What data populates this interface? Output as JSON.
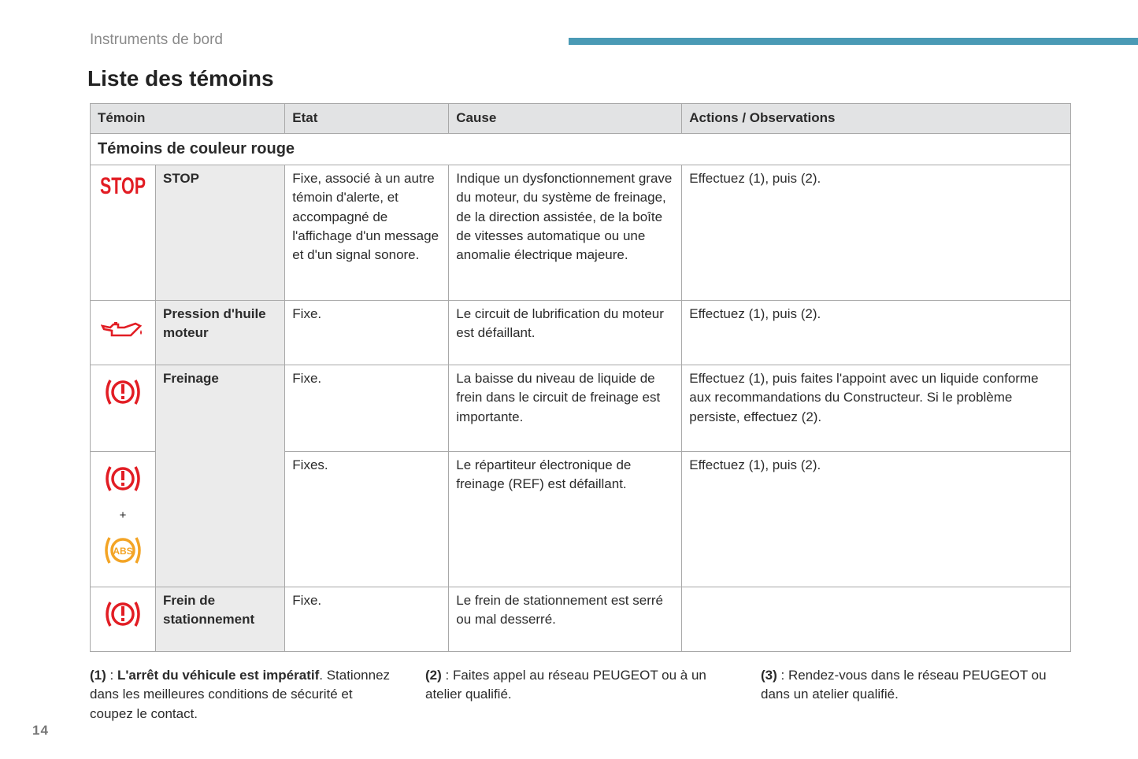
{
  "header": {
    "section": "Instruments de bord",
    "title": "Liste des témoins",
    "accent": "#4a9ab5"
  },
  "table": {
    "columns": [
      "Témoin",
      "Etat",
      "Cause",
      "Actions / Observations"
    ],
    "group": "Témoins de couleur rouge",
    "rows": [
      {
        "icon": "stop-icon",
        "icon_text": "STOP",
        "name": "STOP",
        "etat": "Fixe, associé à un autre témoin d'alerte, et accompagné de l'affichage d'un message et d'un signal sonore.",
        "cause": "Indique un dysfonctionnement grave du moteur, du système de freinage, de la direction assistée, de la boîte de vitesses automatique ou une anomalie électrique majeure.",
        "action": "Effectuez (1), puis (2)."
      },
      {
        "icon": "oil-pressure-icon",
        "name": "Pression d'huile moteur",
        "etat": "Fixe.",
        "cause": "Le circuit de lubrification du moteur est défaillant.",
        "action": "Effectuez (1), puis (2)."
      },
      {
        "icon": "brake-warning-icon",
        "name": "Freinage",
        "etat": "Fixe.",
        "cause": "La baisse du niveau de liquide de frein dans le circuit de freinage est importante.",
        "action": "Effectuez (1), puis faites l'appoint avec un liquide conforme aux recommandations du Constructeur. Si le problème persiste, effectuez (2)."
      },
      {
        "icon": "brake-warning-icon + abs-icon",
        "plus": "+",
        "abs_text": "ABS",
        "etat": "Fixes.",
        "cause": "Le répartiteur électronique de freinage (REF) est défaillant.",
        "action": "Effectuez (1), puis (2)."
      },
      {
        "icon": "brake-warning-icon",
        "name": "Frein de stationnement",
        "etat": "Fixe.",
        "cause": "Le frein de stationnement est serré ou mal desserré.",
        "action": ""
      }
    ]
  },
  "footnotes": [
    {
      "ref": "(1)",
      "sep": " : ",
      "bold": "L'arrêt du véhicule est impératif",
      "text": ". Stationnez dans les meilleures conditions de sécurité et coupez le contact."
    },
    {
      "ref": "(2)",
      "sep": " : ",
      "text": "Faites appel au réseau PEUGEOT ou à un atelier qualifié."
    },
    {
      "ref": "(3)",
      "sep": " : ",
      "text": "Rendez-vous dans le réseau PEUGEOT ou dans un atelier qualifié."
    }
  ],
  "page_number": "14",
  "colors": {
    "red": "#e21d24",
    "amber": "#f3a425"
  }
}
